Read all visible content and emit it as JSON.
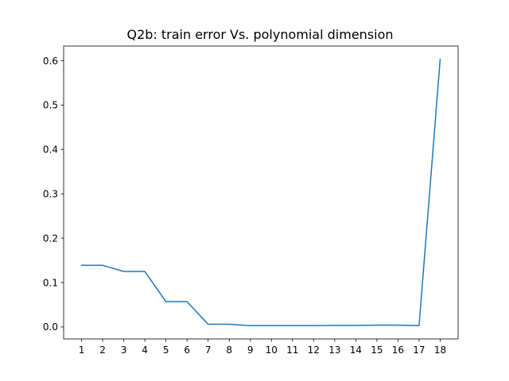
{
  "chart_data": {
    "type": "line",
    "title": "Q2b: train error Vs. polynomial dimension",
    "xlabel": "",
    "ylabel": "",
    "x": [
      1,
      2,
      3,
      4,
      5,
      6,
      7,
      8,
      9,
      10,
      11,
      12,
      13,
      14,
      15,
      16,
      17,
      18
    ],
    "series": [
      {
        "values": [
          0.139,
          0.139,
          0.125,
          0.125,
          0.057,
          0.057,
          0.006,
          0.006,
          0.003,
          0.003,
          0.003,
          0.003,
          0.0035,
          0.0035,
          0.004,
          0.004,
          0.003,
          0.603
        ],
        "color": "#1f77b4"
      }
    ],
    "xticks": [
      "1",
      "2",
      "3",
      "4",
      "5",
      "6",
      "7",
      "8",
      "9",
      "10",
      "11",
      "12",
      "13",
      "14",
      "15",
      "16",
      "17",
      "18"
    ],
    "yticks": [
      "0.0",
      "0.1",
      "0.2",
      "0.3",
      "0.4",
      "0.5",
      "0.6"
    ],
    "ytick_values": [
      0.0,
      0.1,
      0.2,
      0.3,
      0.4,
      0.5,
      0.6
    ],
    "xlim": [
      0.15,
      18.85
    ],
    "ylim": [
      -0.027,
      0.633
    ],
    "grid": false,
    "legend": false
  }
}
